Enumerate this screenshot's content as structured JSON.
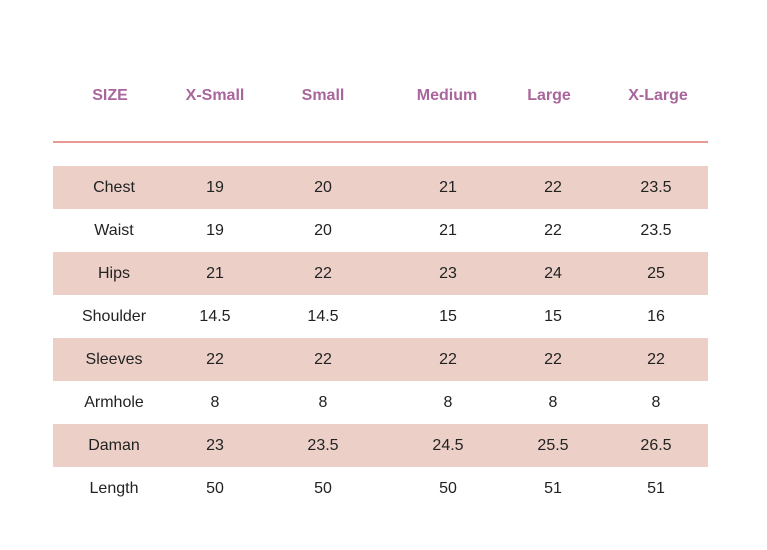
{
  "table": {
    "headers": [
      "SIZE",
      "X-Small",
      "Small",
      "Medium",
      "Large",
      "X-Large"
    ],
    "rows": [
      {
        "label": "Chest",
        "values": [
          "19",
          "20",
          "21",
          "22",
          "23.5"
        ]
      },
      {
        "label": "Waist",
        "values": [
          "19",
          "20",
          "21",
          "22",
          "23.5"
        ]
      },
      {
        "label": "Hips",
        "values": [
          "21",
          "22",
          "23",
          "24",
          "25"
        ]
      },
      {
        "label": "Shoulder",
        "values": [
          "14.5",
          "14.5",
          "15",
          "15",
          "16"
        ]
      },
      {
        "label": "Sleeves",
        "values": [
          "22",
          "22",
          "22",
          "22",
          "22"
        ]
      },
      {
        "label": "Armhole",
        "values": [
          "8",
          "8",
          "8",
          "8",
          "8"
        ]
      },
      {
        "label": "Daman",
        "values": [
          "23",
          "23.5",
          "24.5",
          "25.5",
          "26.5"
        ]
      },
      {
        "label": "Length",
        "values": [
          "50",
          "50",
          "50",
          "51",
          "51"
        ]
      }
    ]
  },
  "colors": {
    "header_text": "#a9669c",
    "divider": "#e69a92",
    "row_shade": "#ecd0c8",
    "body_text": "#222222"
  }
}
